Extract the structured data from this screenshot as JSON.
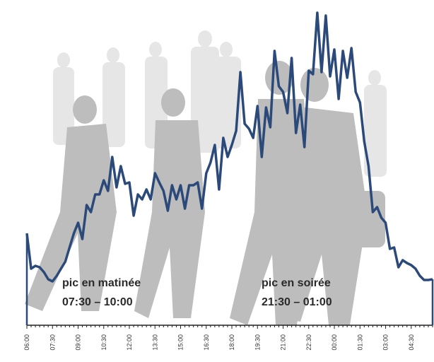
{
  "chart_data": {
    "type": "line",
    "categories": [
      "06:00",
      null,
      null,
      null,
      null,
      null,
      "07:30",
      null,
      null,
      null,
      null,
      null,
      "09:00",
      null,
      null,
      null,
      null,
      null,
      "10:30",
      null,
      null,
      null,
      null,
      null,
      "12:00",
      null,
      null,
      null,
      null,
      null,
      "13:30",
      null,
      null,
      null,
      null,
      null,
      "15:00",
      null,
      null,
      null,
      null,
      null,
      "16:30",
      null,
      null,
      null,
      null,
      null,
      "18:00",
      null,
      null,
      null,
      null,
      null,
      "19:30",
      null,
      null,
      null,
      null,
      null,
      "21:00",
      null,
      null,
      null,
      null,
      null,
      "22:30",
      null,
      null,
      null,
      null,
      null,
      "00:00",
      null,
      null,
      null,
      null,
      null,
      "01:30",
      null,
      null,
      null,
      null,
      null,
      "03:00",
      null,
      null,
      null,
      null,
      null,
      "04:30",
      null,
      null,
      null,
      null,
      null
    ],
    "values": [
      130,
      80,
      84,
      82,
      75,
      65,
      62,
      70,
      80,
      90,
      110,
      130,
      145,
      122,
      170,
      160,
      185,
      185,
      205,
      190,
      238,
      195,
      225,
      200,
      202,
      155,
      185,
      178,
      192,
      178,
      215,
      202,
      190,
      162,
      198,
      178,
      198,
      165,
      198,
      198,
      202,
      165,
      215,
      230,
      255,
      192,
      265,
      238,
      255,
      275,
      358,
      285,
      278,
      265,
      310,
      238,
      308,
      280,
      388,
      338,
      330,
      300,
      378,
      272,
      312,
      252,
      360,
      355,
      442,
      358,
      438,
      352,
      390,
      320,
      388,
      350,
      392,
      330,
      315,
      260,
      225,
      160,
      167,
      152,
      145,
      108,
      110,
      82,
      92,
      88,
      85,
      80,
      70,
      64,
      64,
      65
    ],
    "color": "#2b4a7a",
    "ylim": [
      0,
      445
    ],
    "annotations": [
      "pic en matinée",
      "07:30 – 10:00",
      "pic en soirée",
      "21:30 – 01:00"
    ]
  }
}
